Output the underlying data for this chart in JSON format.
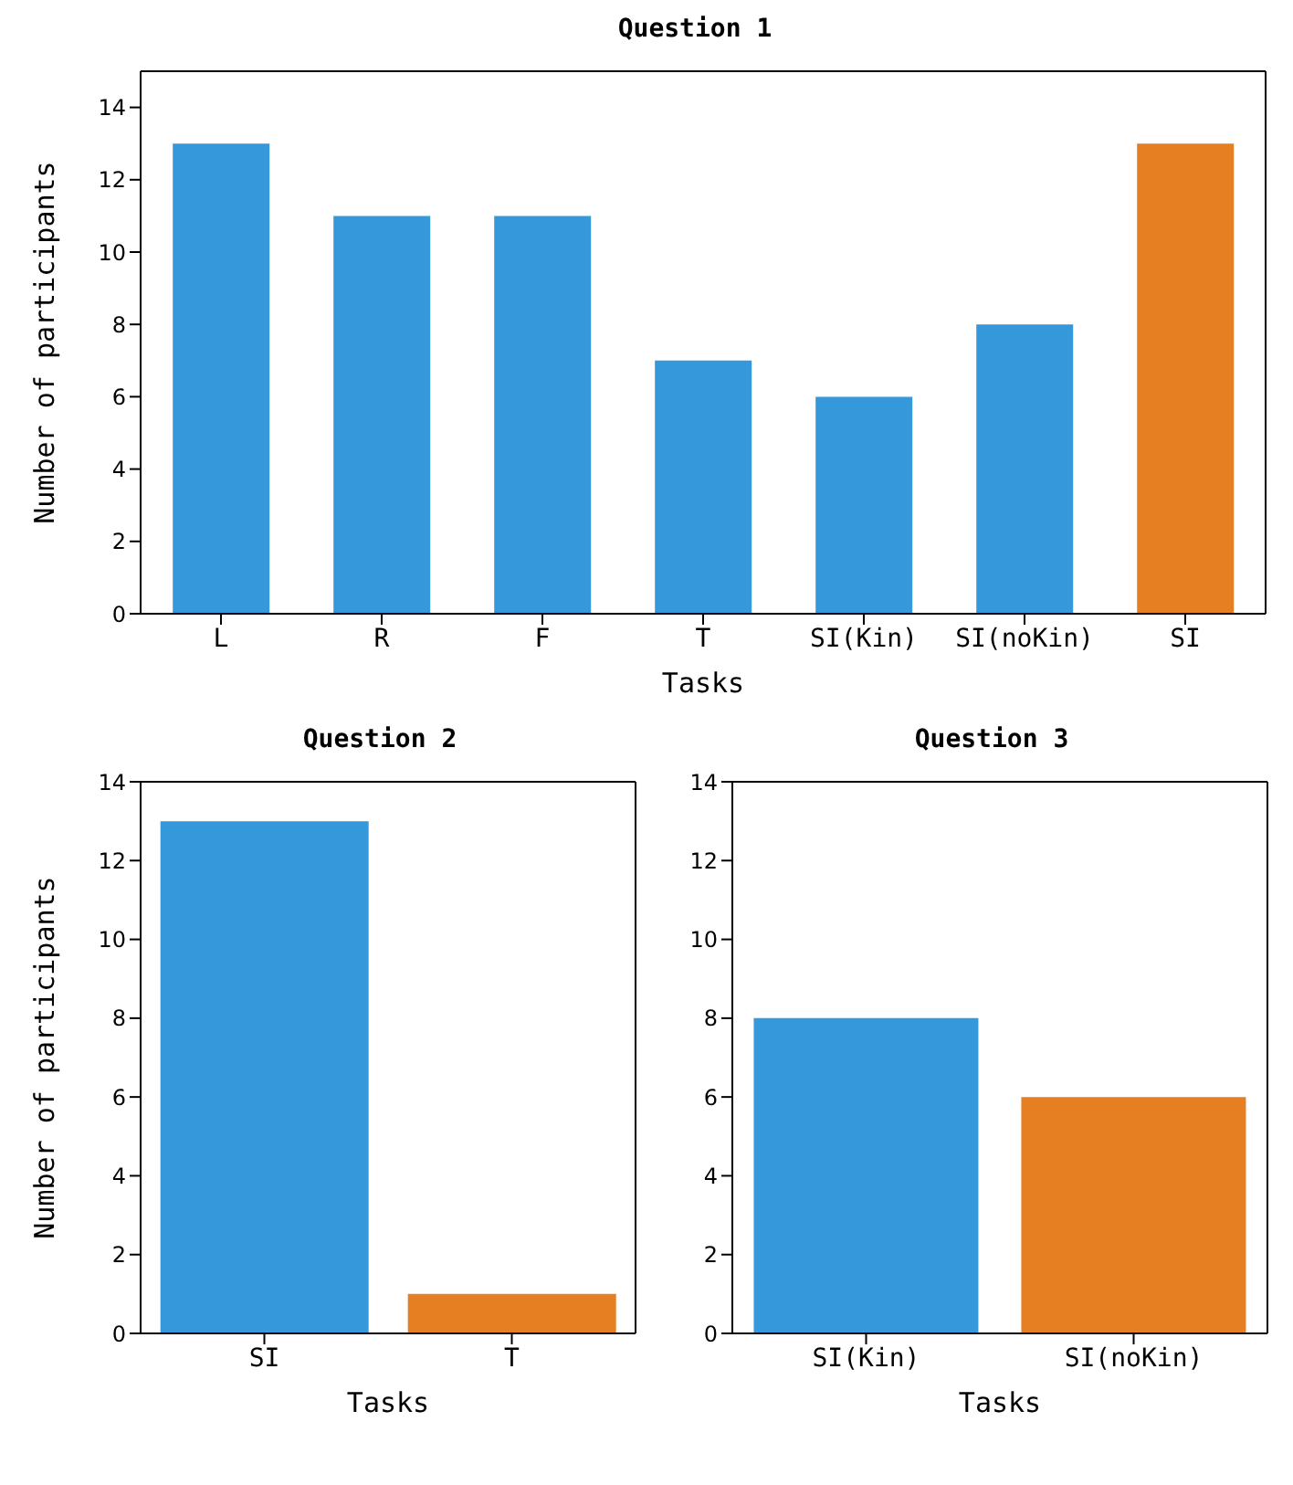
{
  "chart_data": [
    {
      "type": "bar",
      "title": "Question 1",
      "xlabel": "Tasks",
      "ylabel": "Number of participants",
      "categories": [
        "L",
        "R",
        "F",
        "T",
        "SI(Kin)",
        "SI(noKin)",
        "SI"
      ],
      "values": [
        13,
        11,
        11,
        7,
        6,
        8,
        13
      ],
      "colors": [
        "#3498db",
        "#3498db",
        "#3498db",
        "#3498db",
        "#3498db",
        "#3498db",
        "#e67e22"
      ],
      "ylim": [
        0,
        15
      ],
      "yticks": [
        0,
        2,
        4,
        6,
        8,
        10,
        12,
        14
      ],
      "grid": false
    },
    {
      "type": "bar",
      "title": "Question 2",
      "xlabel": "Tasks",
      "ylabel": "Number of participants",
      "categories": [
        "SI",
        "T"
      ],
      "values": [
        13,
        1
      ],
      "colors": [
        "#3498db",
        "#e67e22"
      ],
      "ylim": [
        0,
        14
      ],
      "yticks": [
        0,
        2,
        4,
        6,
        8,
        10,
        12,
        14
      ],
      "grid": false
    },
    {
      "type": "bar",
      "title": "Question 3",
      "xlabel": "Tasks",
      "categories": [
        "SI(Kin)",
        "SI(noKin)"
      ],
      "values": [
        8,
        6
      ],
      "colors": [
        "#3498db",
        "#e67e22"
      ],
      "ylim": [
        0,
        14
      ],
      "yticks": [
        0,
        2,
        4,
        6,
        8,
        10,
        12,
        14
      ],
      "grid": false
    }
  ]
}
